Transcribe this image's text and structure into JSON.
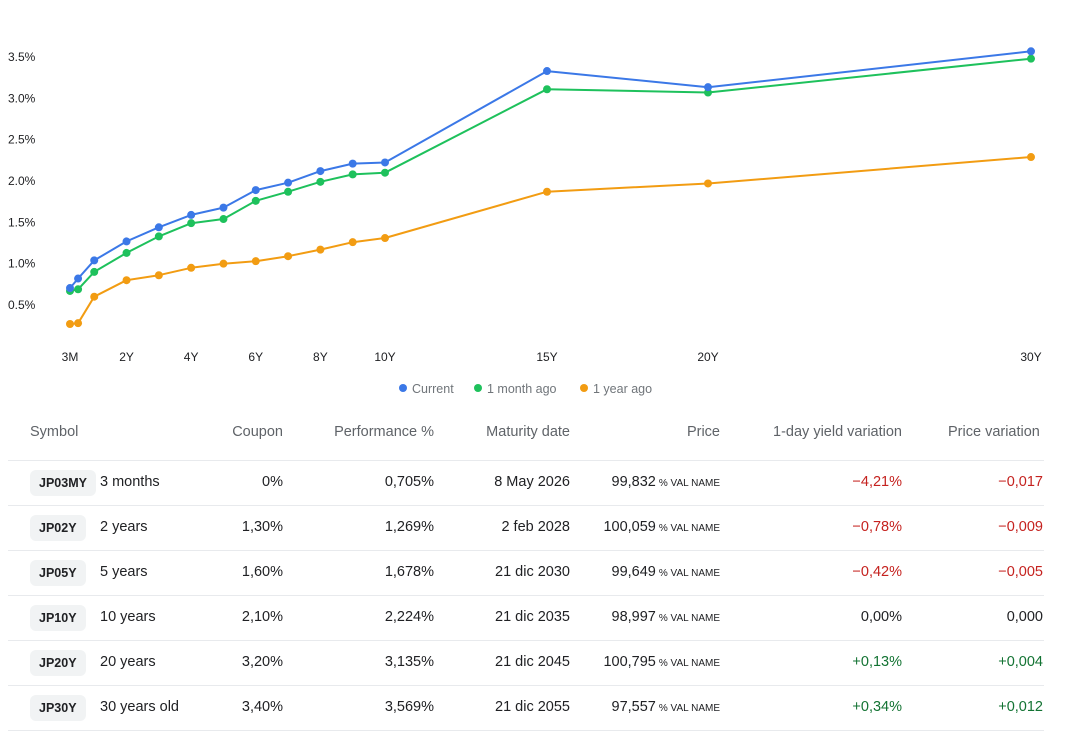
{
  "chart_data": {
    "type": "line",
    "categories": [
      "3M",
      "6M",
      "1Y",
      "2Y",
      "3Y",
      "4Y",
      "5Y",
      "6Y",
      "7Y",
      "8Y",
      "9Y",
      "10Y",
      "15Y",
      "20Y",
      "30Y"
    ],
    "x": [
      0.25,
      0.5,
      1,
      2,
      3,
      4,
      5,
      6,
      7,
      8,
      9,
      10,
      15,
      20,
      30
    ],
    "x_tick_labels": [
      "3M",
      "2Y",
      "4Y",
      "6Y",
      "8Y",
      "10Y",
      "15Y",
      "20Y",
      "30Y"
    ],
    "x_tick_values": [
      0.25,
      2,
      4,
      6,
      8,
      10,
      15,
      20,
      30
    ],
    "y_tick_labels": [
      "0.5%",
      "1.0%",
      "1.5%",
      "2.0%",
      "2.5%",
      "3.0%",
      "3.5%"
    ],
    "y_tick_values": [
      0.5,
      1.0,
      1.5,
      2.0,
      2.5,
      3.0,
      3.5
    ],
    "ylim": [
      0,
      3.75
    ],
    "series": [
      {
        "name": "Current",
        "color": "#3b78e7",
        "values": [
          0.705,
          0.82,
          1.04,
          1.269,
          1.44,
          1.59,
          1.678,
          1.89,
          1.98,
          2.12,
          2.21,
          2.224,
          3.33,
          3.135,
          3.569
        ]
      },
      {
        "name": "1 month ago",
        "color": "#1ec15c",
        "values": [
          0.67,
          0.69,
          0.9,
          1.13,
          1.33,
          1.49,
          1.54,
          1.76,
          1.87,
          1.99,
          2.08,
          2.1,
          3.11,
          3.07,
          3.48
        ]
      },
      {
        "name": "1 year ago",
        "color": "#f29c12",
        "values": [
          0.27,
          0.28,
          0.6,
          0.8,
          0.86,
          0.95,
          1.0,
          1.03,
          1.09,
          1.17,
          1.26,
          1.31,
          1.87,
          1.97,
          2.29
        ]
      }
    ],
    "title": "",
    "xlabel": "",
    "ylabel": "",
    "legend": "bottom-center"
  },
  "table": {
    "headers": {
      "symbol": "Symbol",
      "coupon": "Coupon",
      "performance": "Performance %",
      "maturity": "Maturity date",
      "price": "Price",
      "yield_var": "1-day yield variation",
      "price_var": "Price variation"
    },
    "rows": [
      {
        "symbol": "JP03MY",
        "name": "3 months",
        "coupon": "0%",
        "performance": "0,705%",
        "maturity": "8 May 2026",
        "price": "99,832",
        "unit": "% VAL NAME",
        "yield_var": "−4,21%",
        "price_var": "−0,017",
        "trend": "neg"
      },
      {
        "symbol": "JP02Y",
        "name": "2 years",
        "coupon": "1,30%",
        "performance": "1,269%",
        "maturity": "2 feb 2028",
        "price": "100,059",
        "unit": "% VAL NAME",
        "yield_var": "−0,78%",
        "price_var": "−0,009",
        "trend": "neg"
      },
      {
        "symbol": "JP05Y",
        "name": "5 years",
        "coupon": "1,60%",
        "performance": "1,678%",
        "maturity": "21 dic 2030",
        "price": "99,649",
        "unit": "% VAL NAME",
        "yield_var": "−0,42%",
        "price_var": "−0,005",
        "trend": "neg"
      },
      {
        "symbol": "JP10Y",
        "name": "10 years",
        "coupon": "2,10%",
        "performance": "2,224%",
        "maturity": "21 dic 2035",
        "price": "98,997",
        "unit": "% VAL NAME",
        "yield_var": "0,00%",
        "price_var": "0,000",
        "trend": "neutral"
      },
      {
        "symbol": "JP20Y",
        "name": "20 years",
        "coupon": "3,20%",
        "performance": "3,135%",
        "maturity": "21 dic 2045",
        "price": "100,795",
        "unit": "% VAL NAME",
        "yield_var": "+0,13%",
        "price_var": "+0,004",
        "trend": "pos"
      },
      {
        "symbol": "JP30Y",
        "name": "30 years old",
        "coupon": "3,40%",
        "performance": "3,569%",
        "maturity": "21 dic 2055",
        "price": "97,557",
        "unit": "% VAL NAME",
        "yield_var": "+0,34%",
        "price_var": "+0,012",
        "trend": "pos"
      }
    ]
  }
}
